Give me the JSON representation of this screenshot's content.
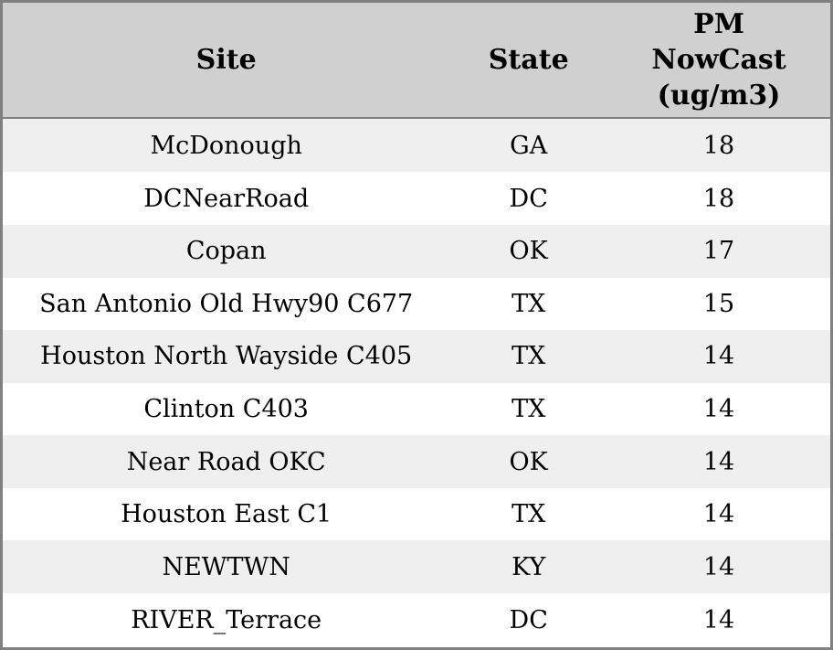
{
  "table": {
    "columns": [
      {
        "label": "Site"
      },
      {
        "label": "State"
      },
      {
        "label": "PM\nNowCast\n(ug/m3)"
      }
    ],
    "rows": [
      {
        "site": "McDonough",
        "state": "GA",
        "pm": "18"
      },
      {
        "site": "DCNearRoad",
        "state": "DC",
        "pm": "18"
      },
      {
        "site": "Copan",
        "state": "OK",
        "pm": "17"
      },
      {
        "site": "San Antonio Old Hwy90 C677",
        "state": "TX",
        "pm": "15"
      },
      {
        "site": "Houston North Wayside C405",
        "state": "TX",
        "pm": "14"
      },
      {
        "site": "Clinton C403",
        "state": "TX",
        "pm": "14"
      },
      {
        "site": "Near Road OKC",
        "state": "OK",
        "pm": "14"
      },
      {
        "site": "Houston East C1",
        "state": "TX",
        "pm": "14"
      },
      {
        "site": "NEWTWN",
        "state": "KY",
        "pm": "14"
      },
      {
        "site": "RIVER_Terrace",
        "state": "DC",
        "pm": "14"
      }
    ]
  },
  "chart_data": {
    "type": "table",
    "title": "",
    "columns": [
      "Site",
      "State",
      "PM NowCast (ug/m3)"
    ],
    "rows": [
      [
        "McDonough",
        "GA",
        18
      ],
      [
        "DCNearRoad",
        "DC",
        18
      ],
      [
        "Copan",
        "OK",
        17
      ],
      [
        "San Antonio Old Hwy90 C677",
        "TX",
        15
      ],
      [
        "Houston North Wayside C405",
        "TX",
        14
      ],
      [
        "Clinton C403",
        "TX",
        14
      ],
      [
        "Near Road OKC",
        "OK",
        14
      ],
      [
        "Houston East C1",
        "TX",
        14
      ],
      [
        "NEWTWN",
        "KY",
        14
      ],
      [
        "RIVER_Terrace",
        "DC",
        14
      ]
    ],
    "layout": {
      "header_background": "#d0d0d0",
      "row_stripe_odd": "#efefef",
      "row_stripe_even": "#ffffff",
      "border_color": "#808080",
      "text_color": "#000000"
    }
  }
}
